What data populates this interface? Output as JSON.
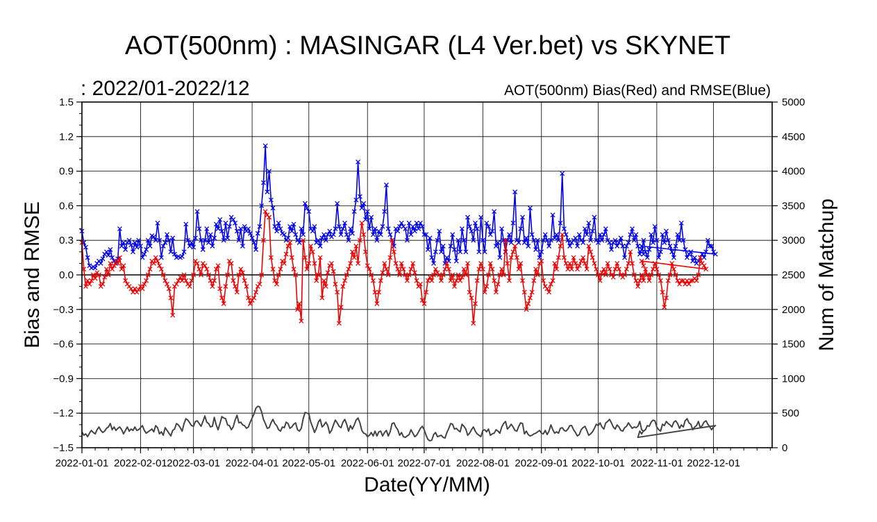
{
  "chart_data": {
    "type": "line",
    "title": "AOT(500nm) : MASINGAR (L4 Ver.bet) vs SKYNET",
    "subtitle": ":  2022/01-2022/12",
    "annotation": "AOT(500nm) Bias(Red) and RMSE(Blue)",
    "xlabel": "Date(YY/MM)",
    "ylabel": "Bias and RMSE",
    "y2label": "Num of Matchup",
    "x_tick_labels": [
      "2022-01-01",
      "2022-02-01",
      "2022-03-01",
      "2022-04-01",
      "2022-05-01",
      "2022-06-01",
      "2022-07-01",
      "2022-08-01",
      "2022-09-01",
      "2022-10-01",
      "2022-11-01",
      "2022-12-01"
    ],
    "x_tick_days": [
      0,
      31,
      59,
      90,
      120,
      151,
      181,
      212,
      243,
      273,
      304,
      334
    ],
    "xlim_days": [
      0,
      365
    ],
    "ylim": [
      -1.5,
      1.5
    ],
    "y_ticks": [
      "1.5",
      "1.2",
      "0.9",
      "0.6",
      "0.3",
      "0.0",
      "−0.3",
      "−0.6",
      "−0.9",
      "−1.2",
      "−1.5"
    ],
    "y2lim": [
      0,
      5000
    ],
    "y2_ticks": [
      "5000",
      "4500",
      "4000",
      "3500",
      "3000",
      "2500",
      "2000",
      "1500",
      "1000",
      "500",
      "0"
    ],
    "grid": true,
    "colors": {
      "bias": "#ee0000",
      "rmse": "#0000ee",
      "matchup": "#444444",
      "axis": "#000000",
      "grid": "#000000"
    },
    "series": [
      {
        "name": "RMSE",
        "axis": "left",
        "marker": "x",
        "color": "#0000ee",
        "x_start_day": 0,
        "values": [
          0.38,
          0.28,
          0.24,
          0.15,
          0.08,
          0.06,
          0.07,
          0.06,
          0.1,
          0.12,
          0.1,
          0.14,
          0.18,
          0.2,
          0.17,
          0.22,
          0.15,
          0.12,
          0.1,
          0.14,
          0.4,
          0.25,
          0.28,
          0.22,
          0.28,
          0.3,
          0.26,
          0.2,
          0.28,
          0.24,
          0.3,
          0.25,
          0.15,
          0.18,
          0.22,
          0.3,
          0.25,
          0.34,
          0.33,
          0.3,
          0.45,
          0.3,
          0.15,
          0.25,
          0.28,
          0.35,
          0.3,
          0.2,
          0.32,
          0.18,
          0.15,
          0.16,
          0.15,
          0.16,
          0.2,
          0.44,
          0.3,
          0.25,
          0.28,
          0.24,
          0.32,
          0.55,
          0.4,
          0.3,
          0.22,
          0.3,
          0.4,
          0.28,
          0.35,
          0.25,
          0.32,
          0.44,
          0.4,
          0.48,
          0.38,
          0.3,
          0.45,
          0.32,
          0.42,
          0.5,
          0.48,
          0.45,
          0.38,
          0.3,
          0.4,
          0.25,
          0.42,
          0.38,
          0.4,
          0.36,
          0.32,
          0.28,
          0.22,
          0.36,
          0.42,
          0.6,
          0.8,
          1.12,
          0.72,
          0.9,
          0.65,
          0.58,
          0.42,
          0.38,
          0.45,
          0.4,
          0.36,
          0.35,
          0.3,
          0.32,
          0.42,
          0.38,
          0.44,
          0.35,
          0.3,
          0.28,
          0.4,
          0.35,
          0.62,
          0.58,
          0.55,
          0.4,
          0.38,
          0.42,
          0.28,
          0.3,
          0.25,
          0.32,
          0.35,
          0.3,
          0.35,
          0.38,
          0.33,
          0.35,
          0.4,
          0.62,
          0.42,
          0.35,
          0.4,
          0.45,
          0.35,
          0.3,
          0.4,
          0.36,
          0.55,
          0.65,
          0.98,
          0.68,
          0.58,
          0.62,
          0.48,
          0.55,
          0.4,
          0.5,
          0.35,
          0.4,
          0.3,
          0.38,
          0.35,
          0.42,
          0.55,
          0.78,
          0.4,
          0.35,
          0.3,
          0.25,
          0.4,
          0.38,
          0.42,
          0.45,
          0.42,
          0.4,
          0.3,
          0.45,
          0.35,
          0.42,
          0.38,
          0.45,
          0.4,
          0.45,
          0.42,
          0.35,
          0.35,
          0.22,
          0.32,
          0.15,
          0.1,
          0.2,
          0.3,
          0.38,
          0.2,
          0.25,
          0.1,
          0.15,
          0.12,
          0.25,
          0.35,
          0.22,
          0.12,
          0.3,
          0.2,
          0.4,
          0.3,
          0.2,
          0.5,
          0.42,
          0.38,
          0.3,
          0.45,
          0.4,
          0.2,
          0.5,
          0.3,
          0.2,
          0.45,
          0.42,
          0.35,
          0.38,
          0.55,
          0.25,
          0.28,
          0.15,
          0.4,
          0.3,
          0.2,
          0.3,
          0.35,
          0.28,
          0.45,
          0.72,
          0.3,
          0.28,
          0.4,
          0.5,
          0.28,
          0.32,
          0.25,
          0.58,
          0.35,
          0.3,
          0.22,
          0.3,
          0.15,
          0.2,
          0.3,
          0.35,
          0.3,
          0.25,
          0.3,
          0.52,
          0.32,
          0.35,
          0.3,
          0.45,
          0.88,
          0.4,
          0.35,
          0.3,
          0.25,
          0.28,
          0.3,
          0.32,
          0.25,
          0.35,
          0.3,
          0.28,
          0.4,
          0.35,
          0.45,
          0.3,
          0.38,
          0.5,
          0.3,
          0.28,
          0.35,
          0.3,
          0.35,
          0.4,
          0.3,
          0.28,
          0.22,
          0.28,
          0.3,
          0.25,
          0.28,
          0.32,
          0.25,
          0.15,
          0.25,
          0.28,
          0.35,
          0.4,
          0.3,
          0.35,
          0.25,
          0.18,
          0.22,
          0.3,
          0.2,
          0.15,
          0.22,
          0.35,
          0.28,
          0.42,
          0.3,
          0.15,
          0.2,
          0.35,
          0.28,
          0.38,
          0.3,
          0.25,
          0.2,
          0.15,
          0.25,
          0.35,
          0.3,
          0.45,
          0.3,
          0.22,
          0.15,
          0.18,
          0.2,
          0.12,
          0.15,
          0.1,
          0.12,
          0.15,
          0.18,
          0.15,
          0.2,
          0.3,
          0.25,
          0.25,
          0.2,
          0.18
        ],
        "extra_points": [
          [
            296,
            0.25
          ],
          [
            297,
            0.18
          ]
        ]
      },
      {
        "name": "Bias",
        "axis": "left",
        "marker": "x",
        "color": "#ee0000",
        "x_start_day": 0,
        "values": [
          0.28,
          0.05,
          -0.1,
          -0.05,
          -0.08,
          -0.05,
          0.0,
          -0.03,
          0.02,
          0.0,
          -0.1,
          -0.08,
          -0.02,
          0.05,
          0.0,
          0.1,
          0.05,
          0.08,
          0.12,
          0.1,
          0.15,
          0.05,
          0.08,
          -0.05,
          -0.08,
          -0.1,
          -0.12,
          -0.15,
          -0.12,
          -0.15,
          -0.13,
          -0.1,
          -0.12,
          -0.08,
          -0.05,
          0.0,
          0.05,
          0.12,
          0.1,
          0.15,
          0.12,
          0.08,
          0.05,
          0.0,
          -0.05,
          -0.08,
          -0.12,
          -0.2,
          -0.35,
          -0.1,
          -0.08,
          -0.05,
          -0.02,
          -0.05,
          0.0,
          -0.05,
          -0.08,
          -0.1,
          -0.05,
          0.0,
          0.12,
          0.1,
          0.05,
          0.0,
          0.1,
          0.08,
          0.05,
          0.0,
          -0.05,
          -0.1,
          -0.05,
          0.05,
          0.08,
          -0.12,
          -0.2,
          -0.25,
          -0.1,
          0.0,
          0.12,
          0.1,
          -0.05,
          -0.1,
          -0.15,
          0.0,
          0.05,
          0.02,
          -0.05,
          -0.1,
          -0.2,
          -0.25,
          -0.22,
          -0.2,
          -0.15,
          -0.1,
          -0.08,
          0.0,
          0.3,
          0.55,
          0.52,
          0.5,
          0.15,
          0.05,
          -0.05,
          -0.08,
          0.0,
          0.05,
          0.12,
          0.1,
          0.18,
          0.25,
          0.28,
          0.15,
          0.05,
          0.0,
          -0.3,
          -0.25,
          -0.4,
          0.3,
          0.15,
          0.05,
          0.1,
          0.25,
          0.2,
          0.1,
          -0.05,
          0.0,
          0.15,
          -0.2,
          -0.05,
          -0.1,
          0.02,
          0.08,
          0.1,
          0.03,
          -0.08,
          -0.15,
          -0.42,
          -0.28,
          -0.1,
          -0.05,
          0.0,
          0.05,
          0.1,
          0.2,
          0.15,
          0.25,
          0.1,
          0.3,
          0.45,
          0.35,
          0.2,
          0.08,
          0.05,
          0.0,
          -0.05,
          -0.15,
          -0.25,
          -0.15,
          -0.05,
          0.02,
          0.1,
          0.05,
          0.0,
          0.15,
          0.3,
          0.2,
          0.1,
          0.05,
          0.0,
          0.1,
          0.05,
          0.0,
          -0.05,
          0.0,
          0.05,
          0.1,
          0.02,
          -0.05,
          -0.1,
          -0.08,
          -0.22,
          -0.25,
          -0.15,
          -0.05,
          -0.02,
          -0.05,
          0.0,
          0.05,
          0.02,
          0.0,
          -0.05,
          0.0,
          0.05,
          0.1,
          0.05,
          -0.05,
          0.0,
          -0.1,
          -0.05,
          0.0,
          -0.05,
          -0.02,
          0.05,
          0.0,
          0.1,
          -0.15,
          -0.2,
          -0.42,
          -0.25,
          -0.05,
          0.05,
          0.1,
          0.05,
          -0.15,
          -0.1,
          0.0,
          0.1,
          0.05,
          -0.05,
          -0.15,
          -0.08,
          0.0,
          0.05,
          0.0,
          0.3,
          0.1,
          -0.05,
          0.15,
          0.2,
          0.25,
          0.15,
          0.05,
          0.1,
          -0.05,
          -0.15,
          -0.3,
          -0.25,
          -0.2,
          -0.15,
          -0.05,
          0.05,
          0.0,
          0.1,
          0.12,
          -0.05,
          -0.1,
          -0.12,
          -0.15,
          -0.08,
          -0.05,
          0.1,
          0.05,
          0.15,
          0.25,
          0.35,
          0.15,
          0.1,
          0.05,
          0.1,
          0.05,
          0.15,
          0.1,
          0.05,
          0.08,
          0.12,
          0.15,
          0.1,
          0.05,
          0.25,
          0.2,
          0.15,
          0.1,
          0.05,
          0.0,
          -0.05,
          0.02,
          0.05,
          0.0,
          0.1,
          0.05,
          0.0,
          -0.02,
          0.05,
          0.1,
          0.05,
          0.0,
          -0.02,
          0.0,
          0.05,
          0.1,
          0.2,
          0.1,
          0.0,
          -0.05,
          -0.1,
          -0.05,
          0.0,
          -0.05,
          0.05,
          0.0,
          -0.05,
          0.0,
          0.05,
          0.1,
          0.05,
          0.0,
          -0.05,
          -0.15,
          -0.28,
          -0.2,
          -0.05,
          0.0,
          0.1,
          0.05,
          0.0,
          -0.05,
          -0.08,
          -0.05,
          -0.05,
          -0.08,
          -0.05,
          -0.08,
          -0.05,
          -0.05,
          -0.03,
          -0.05,
          0.0,
          0.15,
          0.1,
          0.08,
          0.05
        ],
        "extra_points": [
          [
            296,
            0.12
          ],
          [
            297,
            0.08
          ]
        ]
      },
      {
        "name": "Num of Matchup",
        "axis": "right",
        "marker": "none",
        "color": "#444444",
        "x_start_day": 0,
        "values": [
          230,
          180,
          200,
          160,
          210,
          250,
          220,
          200,
          260,
          300,
          250,
          220,
          240,
          280,
          300,
          350,
          260,
          300,
          250,
          280,
          300,
          260,
          200,
          250,
          300,
          240,
          270,
          250,
          300,
          250,
          260,
          290,
          320,
          250,
          210,
          230,
          250,
          270,
          230,
          320,
          290,
          200,
          230,
          180,
          290,
          250,
          210,
          170,
          250,
          270,
          350,
          330,
          290,
          240,
          350,
          420,
          400,
          360,
          320,
          310,
          380,
          390,
          350,
          310,
          380,
          460,
          370,
          350,
          300,
          310,
          440,
          330,
          260,
          350,
          450,
          430,
          420,
          330,
          320,
          260,
          300,
          400,
          470,
          360,
          370,
          330,
          320,
          280,
          300,
          370,
          430,
          490,
          570,
          600,
          590,
          520,
          410,
          350,
          280,
          290,
          360,
          410,
          350,
          320,
          260,
          240,
          300,
          290,
          370,
          350,
          280,
          300,
          340,
          360,
          260,
          240,
          280,
          420,
          510,
          500,
          490,
          370,
          300,
          220,
          280,
          370,
          410,
          300,
          330,
          370,
          320,
          210,
          250,
          330,
          400,
          360,
          310,
          290,
          370,
          410,
          340,
          240,
          320,
          270,
          330,
          400,
          430,
          360,
          250,
          210,
          200,
          160,
          180,
          220,
          170,
          240,
          170,
          230,
          240,
          170,
          220,
          250,
          170,
          230,
          350,
          360,
          300,
          260,
          180,
          220,
          160,
          150,
          170,
          190,
          260,
          210,
          160,
          180,
          230,
          280,
          310,
          260,
          180,
          120,
          100,
          110,
          190,
          220,
          160,
          170,
          180,
          150,
          140,
          220,
          280,
          350,
          340,
          270,
          280,
          250,
          230,
          340,
          310,
          270,
          180,
          210,
          260,
          300,
          240,
          200,
          180,
          160,
          250,
          260,
          230,
          270,
          180,
          200,
          210,
          260,
          240,
          210,
          300,
          350,
          380,
          270,
          300,
          340,
          300,
          250,
          240,
          310,
          360,
          350,
          200,
          240,
          190,
          170,
          180,
          200,
          210,
          230,
          250,
          210,
          200,
          250,
          190,
          240,
          330,
          260,
          210,
          230,
          210,
          280,
          290,
          250,
          240,
          270,
          320,
          320,
          260,
          220,
          170,
          190,
          260,
          290,
          310,
          250,
          180,
          200,
          230,
          280,
          340,
          320,
          360,
          300,
          270,
          360,
          380,
          410,
          360,
          300,
          270,
          330,
          300,
          250,
          240,
          290,
          310,
          360,
          320,
          280,
          300,
          290,
          310,
          380,
          260,
          240,
          260,
          320,
          310,
          370,
          400,
          390,
          300,
          260,
          240,
          340,
          320,
          380,
          350,
          330,
          300,
          370,
          390,
          350,
          280,
          330,
          300,
          390,
          420,
          360,
          340,
          260,
          300,
          320,
          380,
          290,
          320,
          370,
          390,
          340,
          300,
          260,
          300,
          320
        ],
        "extra_points": [
          [
            294,
            150
          ],
          [
            295,
            240
          ],
          [
            296,
            200
          ],
          [
            297,
            250
          ]
        ]
      }
    ]
  }
}
